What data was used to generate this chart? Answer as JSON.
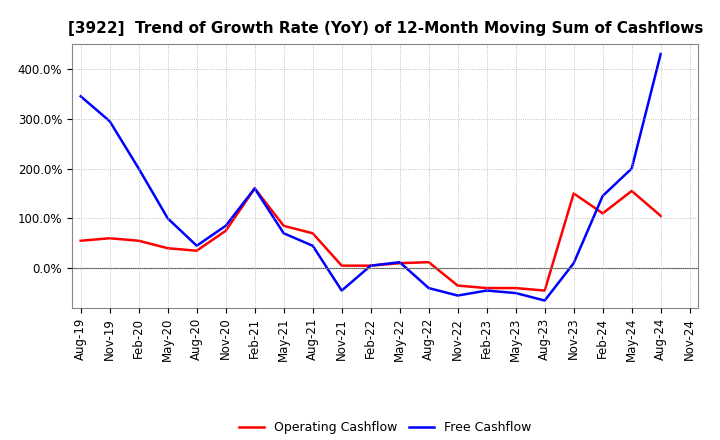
{
  "title": "[3922]  Trend of Growth Rate (YoY) of 12-Month Moving Sum of Cashflows",
  "x_labels": [
    "Aug-19",
    "Nov-19",
    "Feb-20",
    "May-20",
    "Aug-20",
    "Nov-20",
    "Feb-21",
    "May-21",
    "Aug-21",
    "Nov-21",
    "Feb-22",
    "May-22",
    "Aug-22",
    "Nov-22",
    "Feb-23",
    "May-23",
    "Aug-23",
    "Nov-23",
    "Feb-24",
    "May-24",
    "Aug-24",
    "Nov-24"
  ],
  "operating_cashflow": [
    55,
    60,
    55,
    40,
    35,
    75,
    160,
    85,
    70,
    5,
    5,
    10,
    12,
    -35,
    -40,
    -40,
    -45,
    150,
    110,
    155,
    105,
    null
  ],
  "free_cashflow": [
    345,
    295,
    200,
    100,
    45,
    85,
    160,
    70,
    45,
    -45,
    5,
    12,
    -40,
    -55,
    -45,
    -50,
    -65,
    10,
    145,
    200,
    430,
    null
  ],
  "ylim": [
    -80,
    450
  ],
  "yticks": [
    0,
    100,
    200,
    300,
    400
  ],
  "operating_color": "#ff0000",
  "free_color": "#0000ff",
  "legend_labels": [
    "Operating Cashflow",
    "Free Cashflow"
  ],
  "background_color": "#ffffff",
  "grid_color": "#b0b0b0",
  "title_fontsize": 11,
  "axis_fontsize": 8.5,
  "legend_fontsize": 9
}
